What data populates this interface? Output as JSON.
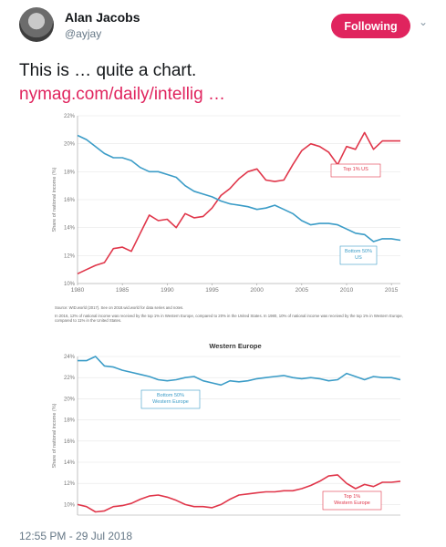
{
  "tweet": {
    "author_name": "Alan Jacobs",
    "author_handle": "@ayjay",
    "follow_label": "Following",
    "text": "This is … quite a chart.",
    "link": "nymag.com/daily/intellig  …",
    "timestamp": "12:55 PM - 29 Jul 2018"
  },
  "colors": {
    "accent": "#e0245e",
    "us_top": "#e0364a",
    "bottom": "#3b9cc7"
  },
  "chart_data": [
    {
      "type": "line",
      "title": "",
      "ylabel": "Share of national income (%)",
      "xlim": [
        1980,
        2016
      ],
      "ylim": [
        10,
        22
      ],
      "x_ticks": [
        "1980",
        "1985",
        "1990",
        "1995",
        "2000",
        "2005",
        "2010",
        "2015"
      ],
      "y_ticks": [
        "10%",
        "12%",
        "14%",
        "16%",
        "18%",
        "20%",
        "22%"
      ],
      "x": [
        1980,
        1981,
        1982,
        1983,
        1984,
        1985,
        1986,
        1987,
        1988,
        1989,
        1990,
        1991,
        1992,
        1993,
        1994,
        1995,
        1996,
        1997,
        1998,
        1999,
        2000,
        2001,
        2002,
        2003,
        2004,
        2005,
        2006,
        2007,
        2008,
        2009,
        2010,
        2011,
        2012,
        2013,
        2014,
        2015,
        2016
      ],
      "series": [
        {
          "name": "Top 1% US",
          "values": [
            10.7,
            11.0,
            11.3,
            11.5,
            12.5,
            12.6,
            12.3,
            13.6,
            14.9,
            14.5,
            14.6,
            14.0,
            15.0,
            14.7,
            14.8,
            15.4,
            16.3,
            16.8,
            17.5,
            18.0,
            18.2,
            17.4,
            17.3,
            17.4,
            18.5,
            19.5,
            20.0,
            19.8,
            19.4,
            18.5,
            19.8,
            19.6,
            20.8,
            19.6,
            20.2,
            20.2,
            20.2
          ]
        },
        {
          "name": "Bottom 50% US",
          "values": [
            20.6,
            20.3,
            19.8,
            19.3,
            19.0,
            19.0,
            18.8,
            18.3,
            18.0,
            18.0,
            17.8,
            17.6,
            17.0,
            16.6,
            16.4,
            16.2,
            15.9,
            15.7,
            15.6,
            15.5,
            15.3,
            15.4,
            15.6,
            15.3,
            15.0,
            14.5,
            14.2,
            14.3,
            14.3,
            14.2,
            13.9,
            13.6,
            13.5,
            13.0,
            13.2,
            13.2,
            13.1
          ]
        }
      ],
      "source": "Source: WID.world (2017). See on 2018.wid.world for data series and notes.",
      "note": "In 2016, 12% of national income was received by the top 1% in Western Europe, compared to 20% in the United States. In 1980, 10% of national income was received by the top 1% in Western Europe, compared to 11% in the United States."
    },
    {
      "type": "line",
      "title": "Western Europe",
      "ylabel": "Share of national income (%)",
      "xlim": [
        1980,
        2016
      ],
      "ylim": [
        9,
        24
      ],
      "y_ticks": [
        "10%",
        "12%",
        "14%",
        "16%",
        "18%",
        "20%",
        "22%",
        "24%"
      ],
      "x": [
        1980,
        1981,
        1982,
        1983,
        1984,
        1985,
        1986,
        1987,
        1988,
        1989,
        1990,
        1991,
        1992,
        1993,
        1994,
        1995,
        1996,
        1997,
        1998,
        1999,
        2000,
        2001,
        2002,
        2003,
        2004,
        2005,
        2006,
        2007,
        2008,
        2009,
        2010,
        2011,
        2012,
        2013,
        2014,
        2015,
        2016
      ],
      "series": [
        {
          "name": "Bottom 50% Western Europe",
          "values": [
            23.6,
            23.6,
            24.0,
            23.1,
            23.0,
            22.7,
            22.5,
            22.3,
            22.1,
            21.8,
            21.7,
            21.8,
            22.0,
            22.1,
            21.7,
            21.5,
            21.3,
            21.7,
            21.6,
            21.7,
            21.9,
            22.0,
            22.1,
            22.2,
            22.0,
            21.9,
            22.0,
            21.9,
            21.7,
            21.8,
            22.4,
            22.1,
            21.8,
            22.1,
            22.0,
            22.0,
            21.8
          ]
        },
        {
          "name": "Top 1% Western Europe",
          "values": [
            10.0,
            9.8,
            9.3,
            9.4,
            9.8,
            9.9,
            10.1,
            10.5,
            10.8,
            10.9,
            10.7,
            10.4,
            10.0,
            9.8,
            9.8,
            9.7,
            10.0,
            10.5,
            10.9,
            11.0,
            11.1,
            11.2,
            11.2,
            11.3,
            11.3,
            11.5,
            11.8,
            12.2,
            12.7,
            12.8,
            12.0,
            11.5,
            11.9,
            11.7,
            12.1,
            12.1,
            12.2
          ]
        }
      ]
    }
  ]
}
